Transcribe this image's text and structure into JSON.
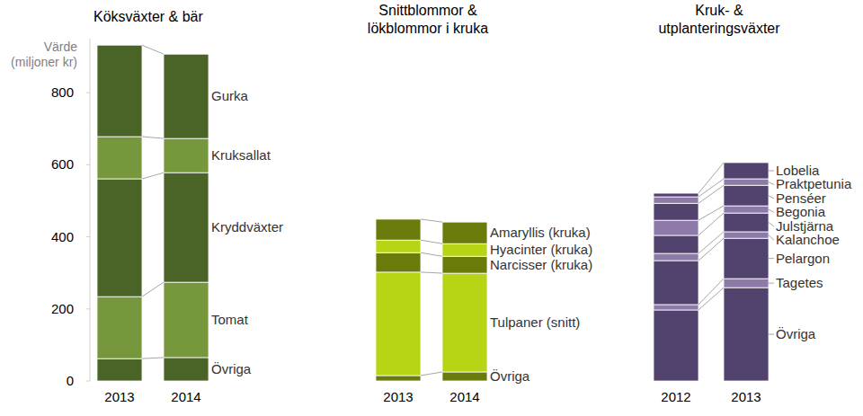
{
  "chart_data": [
    {
      "type": "bar",
      "title": "Köksväxter & bär",
      "ylabel": "Värde (miljoner kr)",
      "stacked": true,
      "categories": [
        "2013",
        "2014"
      ],
      "ylim": [
        0,
        950
      ],
      "yticks": [
        0,
        200,
        400,
        600,
        800
      ],
      "grid": false,
      "series": [
        {
          "name": "Övriga",
          "color": "#4a6327",
          "values": [
            62,
            65
          ]
        },
        {
          "name": "Tomat",
          "color": "#77973c",
          "values": [
            172,
            209
          ]
        },
        {
          "name": "Kryddväxter",
          "color": "#4a6327",
          "values": [
            327,
            304
          ]
        },
        {
          "name": "Kruksallat",
          "color": "#77973c",
          "values": [
            117,
            95
          ]
        },
        {
          "name": "Gurka",
          "color": "#4a6327",
          "values": [
            254,
            234
          ]
        }
      ]
    },
    {
      "type": "bar",
      "title": "Snittblommor &\nlökblommor i kruka",
      "stacked": true,
      "categories": [
        "2013",
        "2014"
      ],
      "ylim": [
        0,
        950
      ],
      "tick_labels": "x",
      "grid": false,
      "series": [
        {
          "name": "Övriga",
          "color": "#6b7b0b",
          "values": [
            15,
            25
          ]
        },
        {
          "name": "Tulpaner (snitt)",
          "color": "#b8d414",
          "values": [
            287,
            274
          ]
        },
        {
          "name": "Narcisser (kruka)",
          "color": "#6b7b0b",
          "values": [
            54,
            47
          ]
        },
        {
          "name": "Hyacinter (kruka)",
          "color": "#b8d414",
          "values": [
            35,
            35
          ]
        },
        {
          "name": "Amaryllis (kruka)",
          "color": "#6b7b0b",
          "values": [
            58,
            60
          ]
        }
      ]
    },
    {
      "type": "bar",
      "title": "Kruk- &\nutplanteringsväxter",
      "stacked": true,
      "categories": [
        "2012",
        "2013"
      ],
      "ylim": [
        0,
        950
      ],
      "tick_labels": "x",
      "grid": false,
      "series": [
        {
          "name": "Övriga",
          "color": "#52426e",
          "values": [
            197,
            259
          ]
        },
        {
          "name": "Tagetes",
          "color": "#8e7aa9",
          "values": [
            15,
            25
          ]
        },
        {
          "name": "Pelargon",
          "color": "#52426e",
          "values": [
            122,
            112
          ]
        },
        {
          "name": "Kalanchoe",
          "color": "#8e7aa9",
          "values": [
            20,
            18
          ]
        },
        {
          "name": "Julstjärna",
          "color": "#52426e",
          "values": [
            50,
            52
          ]
        },
        {
          "name": "Begonia",
          "color": "#8e7aa9",
          "values": [
            42,
            20
          ]
        },
        {
          "name": "Penséer",
          "color": "#52426e",
          "values": [
            47,
            57
          ]
        },
        {
          "name": "Praktpetunia",
          "color": "#8e7aa9",
          "values": [
            18,
            18
          ]
        },
        {
          "name": "Lobelia",
          "color": "#52426e",
          "values": [
            10,
            45
          ]
        }
      ]
    }
  ]
}
